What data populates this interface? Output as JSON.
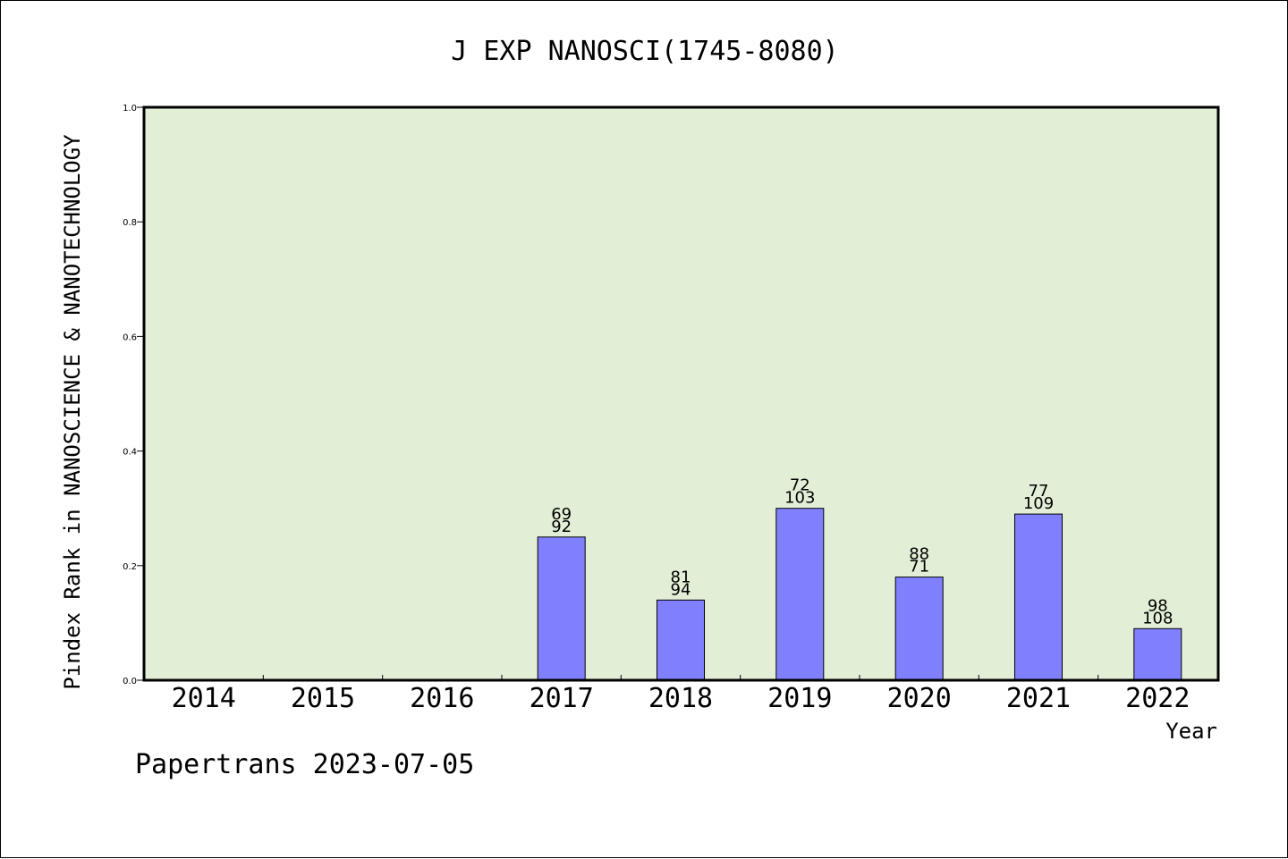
{
  "chart_data": {
    "type": "bar",
    "title": "J EXP NANOSCI(1745-8080)",
    "ylabel": "Pindex Rank in NANOSCIENCE & NANOTECHNOLOGY",
    "xlabel": "Year",
    "categories": [
      "2014",
      "2015",
      "2016",
      "2017",
      "2018",
      "2019",
      "2020",
      "2021",
      "2022"
    ],
    "values": [
      0,
      0,
      0,
      0.25,
      0.14,
      0.3,
      0.18,
      0.29,
      0.09
    ],
    "bar_labels_top": [
      "",
      "",
      "",
      "69",
      "81",
      "72",
      "88",
      "77",
      "98"
    ],
    "bar_labels_bottom": [
      "",
      "",
      "",
      "92",
      "94",
      "103",
      "71",
      "109",
      "108"
    ],
    "ylim": [
      0,
      1.0
    ],
    "yticks": [
      "0.0",
      "0.2",
      "0.4",
      "0.6",
      "0.8",
      "1.0"
    ],
    "ytick_values": [
      0,
      0.2,
      0.4,
      0.6,
      0.8,
      1.0
    ],
    "grid": false,
    "colors": {
      "plot_background": "#e2efd6",
      "bar_fill": "#8080ff",
      "bar_stroke": "#000000",
      "axis": "#000000"
    }
  },
  "footer": "Papertrans 2023-07-05"
}
